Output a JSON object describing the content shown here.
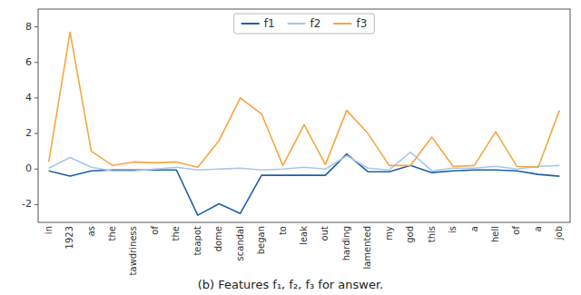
{
  "chart_data": {
    "type": "line",
    "title": "(b) Features f₁, f₂, f₃ for answer.",
    "categories": [
      "in",
      "1923",
      "as",
      "the",
      "tawdriness",
      "of",
      "the",
      "teapot",
      "dome",
      "scandal",
      "began",
      "to",
      "leak",
      "out",
      "harding",
      "lamented",
      "my",
      "god",
      "this",
      "is",
      "a",
      "hell",
      "of",
      "a",
      "job"
    ],
    "series": [
      {
        "name": "f1",
        "color": "#1f5fa6",
        "values": [
          -0.1,
          -0.4,
          -0.1,
          -0.05,
          -0.05,
          -0.05,
          -0.05,
          -2.6,
          -1.95,
          -2.5,
          -0.35,
          -0.35,
          -0.35,
          -0.35,
          0.85,
          -0.15,
          -0.15,
          0.2,
          -0.2,
          -0.1,
          -0.05,
          -0.05,
          -0.1,
          -0.3,
          -0.4
        ]
      },
      {
        "name": "f2",
        "color": "#a8c8e8",
        "values": [
          0.05,
          0.65,
          0.1,
          -0.1,
          -0.1,
          0.0,
          0.1,
          -0.05,
          0.0,
          0.05,
          -0.05,
          0.0,
          0.1,
          0.0,
          0.75,
          0.05,
          -0.05,
          0.95,
          -0.1,
          0.05,
          0.05,
          0.15,
          0.0,
          0.15,
          0.2
        ]
      },
      {
        "name": "f3",
        "color": "#f5a742",
        "values": [
          0.4,
          7.7,
          1.0,
          0.2,
          0.4,
          0.35,
          0.4,
          0.1,
          1.6,
          4.0,
          3.1,
          0.2,
          2.5,
          0.25,
          3.3,
          2.0,
          0.2,
          0.2,
          1.8,
          0.15,
          0.2,
          2.1,
          0.15,
          0.1,
          3.3
        ]
      }
    ],
    "ylim": [
      -3,
      9
    ],
    "yticks": [
      -2,
      0,
      2,
      4,
      6,
      8
    ],
    "grid": false,
    "legend": "upper center"
  }
}
